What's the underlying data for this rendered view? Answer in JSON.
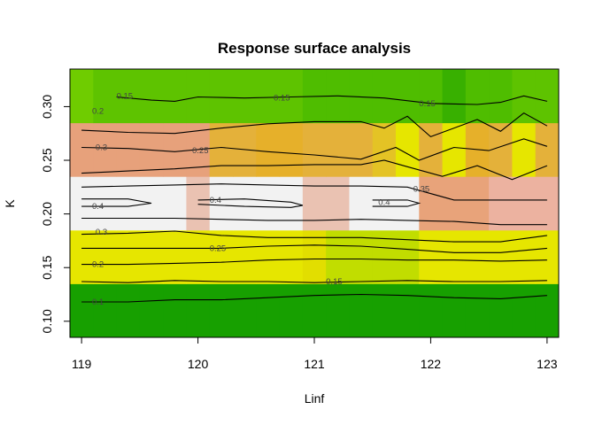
{
  "chart_data": {
    "type": "heatmap",
    "title": "Response surface analysis",
    "xlabel": "Linf",
    "ylabel": "K",
    "x_ticks": [
      119,
      120,
      121,
      122,
      123
    ],
    "y_ticks": [
      0.1,
      0.15,
      0.2,
      0.25,
      0.3
    ],
    "y_tick_labels": [
      "0.10",
      "0.15",
      "0.20",
      "0.25",
      "0.30"
    ],
    "xlim": [
      118.9,
      123.1
    ],
    "ylim": [
      0.085,
      0.335
    ],
    "cell_width": 0.2,
    "rows": [
      {
        "k_range": [
          0.085,
          0.135
        ],
        "colors": [
          "#17a000",
          "#17a000",
          "#17a000",
          "#17a000",
          "#17a000",
          "#17a000",
          "#17a000",
          "#17a000",
          "#17a000",
          "#17a000",
          "#17a000",
          "#17a000",
          "#17a000",
          "#17a000",
          "#17a000",
          "#17a000",
          "#17a000",
          "#17a000",
          "#17a000",
          "#17a000",
          "#17a000",
          "#17a000"
        ]
      },
      {
        "k_range": [
          0.135,
          0.185
        ],
        "colors": [
          "#e6e600",
          "#e6e600",
          "#e6e600",
          "#e6e600",
          "#e6e600",
          "#e6e600",
          "#e6e600",
          "#e6e600",
          "#e6e600",
          "#e6e600",
          "#e2de00",
          "#c1dd00",
          "#c1dd00",
          "#c1dd00",
          "#c1dd00",
          "#e6e600",
          "#e6e600",
          "#e6e600",
          "#e6e600",
          "#e6e600",
          "#e6e600",
          "#e6e600"
        ]
      },
      {
        "k_range": [
          0.185,
          0.235
        ],
        "colors": [
          "#f2f2f2",
          "#f2f2f2",
          "#f2f2f2",
          "#f2f2f2",
          "#f2f2f2",
          "#eac2b2",
          "#f2f2f2",
          "#f2f2f2",
          "#f2f2f2",
          "#f2f2f2",
          "#eac2b2",
          "#eac2b2",
          "#f2f2f2",
          "#f2f2f2",
          "#f2f2f2",
          "#e8a37a",
          "#e8a37a",
          "#e8a37a",
          "#ecb2a0",
          "#ecb2a0",
          "#ecb2a0",
          "#ecb2a0"
        ]
      },
      {
        "k_range": [
          0.235,
          0.285
        ],
        "colors": [
          "#e7a17b",
          "#e7a17b",
          "#e7a17b",
          "#e7a17b",
          "#e7a17b",
          "#e7a17b",
          "#e4b13a",
          "#e4b13a",
          "#e6b02a",
          "#e6b02a",
          "#e4b13a",
          "#e4b13a",
          "#e4b13a",
          "#e4c325",
          "#e6e600",
          "#e4b13a",
          "#e6e600",
          "#e6b02a",
          "#e4b13a",
          "#e6e600",
          "#e4b13a",
          "#c8e000"
        ]
      },
      {
        "k_range": [
          0.285,
          0.335
        ],
        "colors": [
          "#6fcc00",
          "#5ec300",
          "#5ec300",
          "#5ec300",
          "#5ec300",
          "#5ec300",
          "#5ec300",
          "#5ec300",
          "#5ec300",
          "#5ec300",
          "#4fbd00",
          "#4fbd00",
          "#4fbd00",
          "#4fbd00",
          "#4fbd00",
          "#4fbd00",
          "#38b000",
          "#4fbd00",
          "#4fbd00",
          "#5ec300",
          "#5ec300",
          "#5ec300"
        ]
      }
    ],
    "contours": [
      {
        "level": "0.1",
        "points": [
          [
            119,
            0.118
          ],
          [
            119.4,
            0.118
          ],
          [
            119.8,
            0.12
          ],
          [
            120.2,
            0.12
          ],
          [
            120.6,
            0.122
          ],
          [
            121,
            0.124
          ],
          [
            121.4,
            0.125
          ],
          [
            121.8,
            0.124
          ],
          [
            122.2,
            0.122
          ],
          [
            122.6,
            0.121
          ],
          [
            123,
            0.124
          ]
        ]
      },
      {
        "level": "0.15",
        "points": [
          [
            119,
            0.137
          ],
          [
            119.4,
            0.136
          ],
          [
            119.8,
            0.138
          ],
          [
            120.2,
            0.137
          ],
          [
            120.6,
            0.137
          ],
          [
            121,
            0.136
          ],
          [
            121.4,
            0.137
          ],
          [
            121.8,
            0.138
          ],
          [
            122.2,
            0.137
          ],
          [
            122.6,
            0.137
          ],
          [
            123,
            0.138
          ]
        ]
      },
      {
        "level": "0.2",
        "points": [
          [
            119,
            0.153
          ],
          [
            119.4,
            0.153
          ],
          [
            119.8,
            0.154
          ],
          [
            120.2,
            0.155
          ],
          [
            120.6,
            0.157
          ],
          [
            121,
            0.158
          ],
          [
            121.4,
            0.158
          ],
          [
            121.8,
            0.157
          ],
          [
            122.2,
            0.157
          ],
          [
            122.6,
            0.156
          ],
          [
            123,
            0.157
          ]
        ]
      },
      {
        "level": "0.25",
        "points": [
          [
            119,
            0.168
          ],
          [
            119.4,
            0.168
          ],
          [
            119.8,
            0.168
          ],
          [
            120.2,
            0.168
          ],
          [
            120.6,
            0.17
          ],
          [
            121,
            0.171
          ],
          [
            121.4,
            0.17
          ],
          [
            121.8,
            0.167
          ],
          [
            122.2,
            0.164
          ],
          [
            122.6,
            0.164
          ],
          [
            123,
            0.168
          ]
        ]
      },
      {
        "level": "0.3",
        "points": [
          [
            119,
            0.181
          ],
          [
            119.4,
            0.182
          ],
          [
            119.8,
            0.184
          ],
          [
            120.2,
            0.18
          ],
          [
            120.6,
            0.178
          ],
          [
            121,
            0.178
          ],
          [
            121.4,
            0.178
          ],
          [
            121.8,
            0.176
          ],
          [
            122.2,
            0.174
          ],
          [
            122.6,
            0.174
          ],
          [
            123,
            0.18
          ]
        ]
      },
      {
        "level": "0.4",
        "points": [
          [
            119,
            0.207
          ],
          [
            119.4,
            0.207
          ],
          [
            119.6,
            0.21
          ],
          [
            119.4,
            0.214
          ],
          [
            119,
            0.214
          ]
        ]
      },
      {
        "level": "0.4",
        "points": [
          [
            120,
            0.209
          ],
          [
            120.4,
            0.207
          ],
          [
            120.8,
            0.206
          ],
          [
            120.9,
            0.208
          ],
          [
            120.8,
            0.211
          ],
          [
            120.4,
            0.214
          ],
          [
            120,
            0.213
          ]
        ]
      },
      {
        "level": "0.4",
        "points": [
          [
            121.5,
            0.207
          ],
          [
            121.8,
            0.207
          ],
          [
            121.9,
            0.21
          ],
          [
            121.8,
            0.213
          ],
          [
            121.5,
            0.213
          ]
        ]
      },
      {
        "level": "0.35",
        "points": [
          [
            119,
            0.196
          ],
          [
            119.4,
            0.196
          ],
          [
            119.8,
            0.196
          ],
          [
            120.2,
            0.195
          ],
          [
            120.6,
            0.194
          ],
          [
            121,
            0.194
          ],
          [
            121.4,
            0.195
          ],
          [
            121.8,
            0.194
          ],
          [
            122.2,
            0.193
          ],
          [
            122.6,
            0.19
          ],
          [
            123,
            0.19
          ]
        ]
      },
      {
        "level": "0.35",
        "points": [
          [
            119,
            0.225
          ],
          [
            119.4,
            0.226
          ],
          [
            119.8,
            0.227
          ],
          [
            120.2,
            0.228
          ],
          [
            120.6,
            0.227
          ],
          [
            121,
            0.226
          ],
          [
            121.4,
            0.226
          ],
          [
            121.8,
            0.225
          ],
          [
            122.2,
            0.213
          ],
          [
            122.6,
            0.213
          ],
          [
            123,
            0.213
          ]
        ]
      },
      {
        "level": "0.3",
        "points": [
          [
            119,
            0.238
          ],
          [
            119.4,
            0.24
          ],
          [
            119.8,
            0.242
          ],
          [
            120.2,
            0.245
          ],
          [
            120.6,
            0.245
          ],
          [
            121,
            0.246
          ],
          [
            121.4,
            0.246
          ],
          [
            121.6,
            0.25
          ],
          [
            121.8,
            0.244
          ],
          [
            122.1,
            0.235
          ],
          [
            122.4,
            0.245
          ],
          [
            122.7,
            0.232
          ],
          [
            123,
            0.245
          ]
        ]
      },
      {
        "level": "0.25",
        "points": [
          [
            119,
            0.262
          ],
          [
            119.4,
            0.261
          ],
          [
            119.8,
            0.258
          ],
          [
            120.2,
            0.262
          ],
          [
            120.6,
            0.258
          ],
          [
            121,
            0.255
          ],
          [
            121.4,
            0.251
          ],
          [
            121.7,
            0.262
          ],
          [
            121.9,
            0.25
          ],
          [
            122.2,
            0.262
          ],
          [
            122.5,
            0.259
          ],
          [
            122.8,
            0.27
          ],
          [
            123,
            0.263
          ]
        ]
      },
      {
        "level": "0.2",
        "points": [
          [
            119,
            0.278
          ],
          [
            119.4,
            0.276
          ],
          [
            119.8,
            0.275
          ],
          [
            120.2,
            0.28
          ],
          [
            120.6,
            0.284
          ],
          [
            121,
            0.286
          ],
          [
            121.4,
            0.286
          ],
          [
            121.6,
            0.28
          ],
          [
            121.8,
            0.291
          ],
          [
            122.0,
            0.272
          ],
          [
            122.4,
            0.288
          ],
          [
            122.6,
            0.277
          ],
          [
            122.8,
            0.294
          ],
          [
            123,
            0.282
          ]
        ]
      },
      {
        "level": "0.15",
        "points": [
          [
            119.3,
            0.309
          ],
          [
            119.6,
            0.306
          ],
          [
            119.8,
            0.305
          ],
          [
            120,
            0.309
          ],
          [
            120.4,
            0.308
          ],
          [
            120.8,
            0.309
          ],
          [
            121.2,
            0.31
          ],
          [
            121.6,
            0.308
          ],
          [
            122,
            0.303
          ],
          [
            122.4,
            0.302
          ],
          [
            122.6,
            0.304
          ],
          [
            122.8,
            0.31
          ],
          [
            123,
            0.305
          ]
        ]
      }
    ],
    "contour_labels": [
      {
        "text": "0.1",
        "x": 119.09,
        "y": 0.118
      },
      {
        "text": "0.15",
        "x": 119.3,
        "y": 0.31
      },
      {
        "text": "0.15",
        "x": 120.65,
        "y": 0.308
      },
      {
        "text": "0.15",
        "x": 121.9,
        "y": 0.303
      },
      {
        "text": "0.15",
        "x": 121.1,
        "y": 0.137
      },
      {
        "text": "0.2",
        "x": 119.09,
        "y": 0.296
      },
      {
        "text": "0.2",
        "x": 119.09,
        "y": 0.153
      },
      {
        "text": "0.25",
        "x": 119.95,
        "y": 0.259
      },
      {
        "text": "0.25",
        "x": 120.1,
        "y": 0.168
      },
      {
        "text": "0.3",
        "x": 119.12,
        "y": 0.262
      },
      {
        "text": "0.3",
        "x": 119.12,
        "y": 0.183
      },
      {
        "text": "0.4",
        "x": 119.09,
        "y": 0.207
      },
      {
        "text": "0.4",
        "x": 120.1,
        "y": 0.213
      },
      {
        "text": "0.4",
        "x": 121.55,
        "y": 0.211
      },
      {
        "text": "0.35",
        "x": 121.85,
        "y": 0.223
      }
    ]
  }
}
